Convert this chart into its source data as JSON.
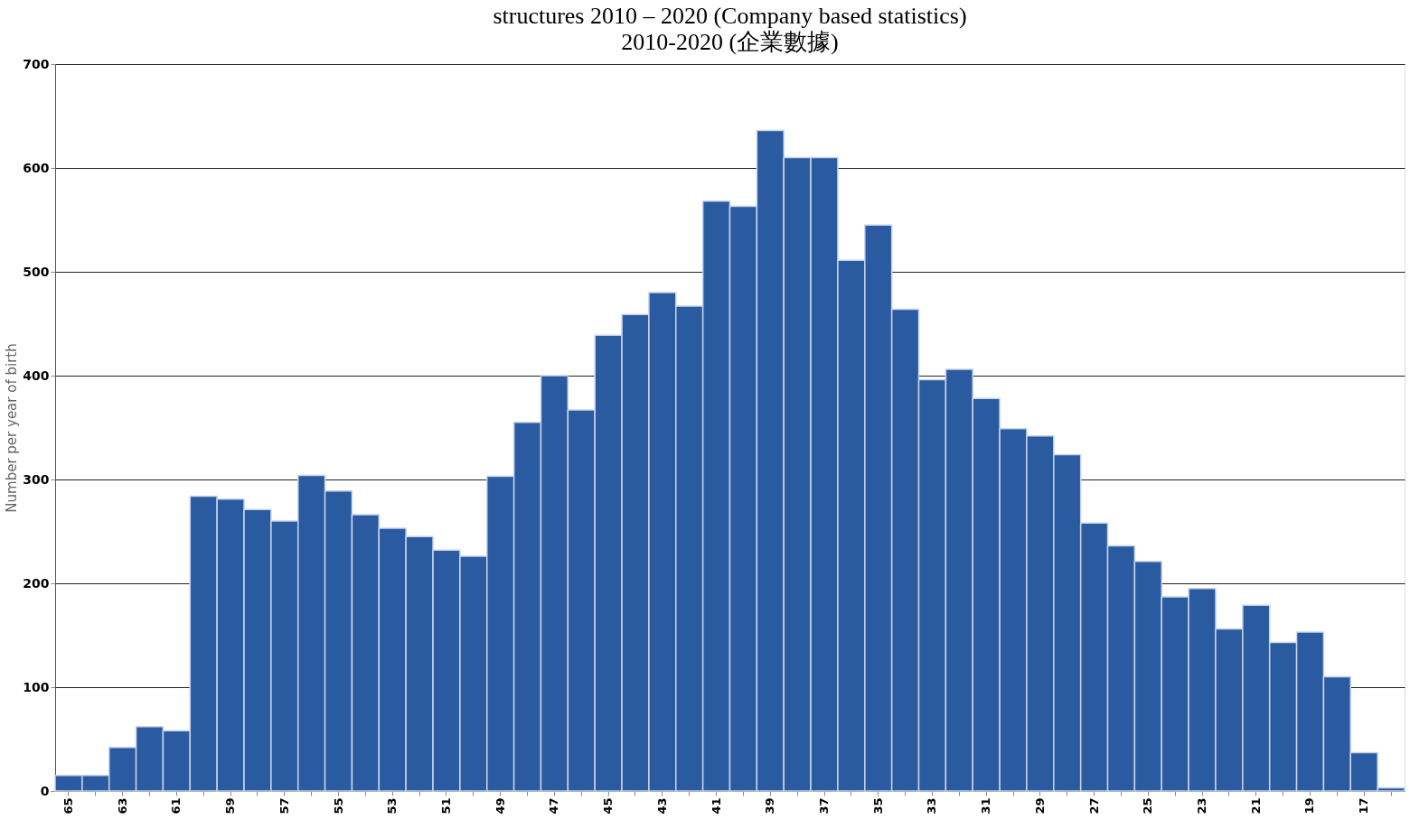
{
  "chart_data": {
    "type": "bar",
    "title": "structures 2010 – 2020 (Company based statistics)",
    "subtitle": "2010-2020 (企業數據)",
    "ylabel": "Number per year of birth",
    "categories": [
      "65",
      null,
      "63",
      null,
      "61",
      null,
      "59",
      null,
      "57",
      null,
      "55",
      null,
      "53",
      null,
      "51",
      null,
      "49",
      null,
      "47",
      null,
      "45",
      null,
      "43",
      null,
      "41",
      null,
      "39",
      null,
      "37",
      null,
      "35",
      null,
      "33",
      null,
      "31",
      null,
      "29",
      null,
      "27",
      null,
      "25",
      null,
      "23",
      null,
      "21",
      null,
      "19",
      null,
      "17",
      null
    ],
    "values": [
      15,
      15,
      42,
      62,
      58,
      284,
      281,
      271,
      260,
      304,
      289,
      266,
      253,
      245,
      232,
      226,
      303,
      355,
      400,
      367,
      439,
      459,
      480,
      467,
      568,
      563,
      636,
      610,
      610,
      511,
      545,
      464,
      396,
      406,
      378,
      349,
      342,
      324,
      258,
      236,
      221,
      187,
      195,
      156,
      179,
      143,
      153,
      110,
      37,
      3
    ],
    "color": "#2a5aa0",
    "ylim": [
      0,
      700
    ],
    "yticks": [
      0,
      100,
      200,
      300,
      400,
      500,
      600,
      700
    ],
    "grid": "y"
  }
}
